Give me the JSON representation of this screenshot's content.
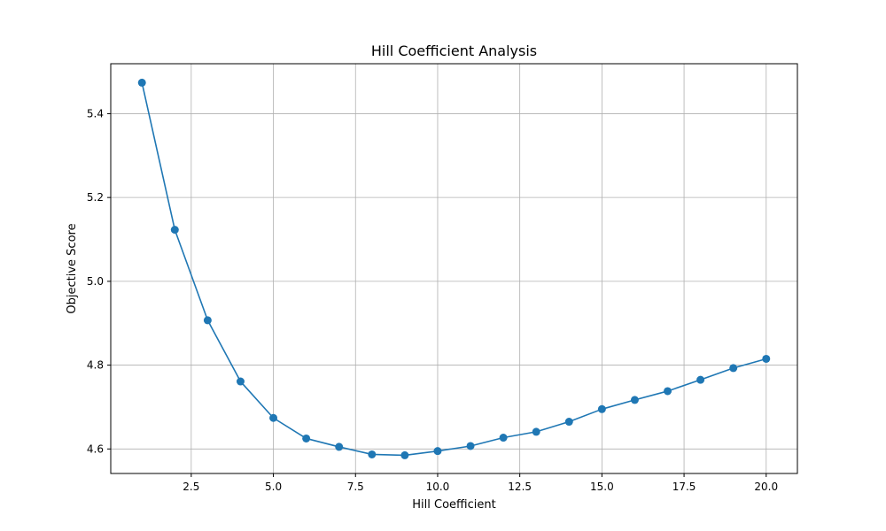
{
  "chart_data": {
    "type": "line",
    "title": "Hill Coefficient Analysis",
    "xlabel": "Hill Coefficient",
    "ylabel": "Objective Score",
    "xlim": [
      0.05,
      20.95
    ],
    "ylim": [
      4.5415,
      5.5192
    ],
    "xticks": [
      2.5,
      5.0,
      7.5,
      10.0,
      12.5,
      15.0,
      17.5,
      20.0
    ],
    "xtick_labels": [
      "2.5",
      "5.0",
      "7.5",
      "10.0",
      "12.5",
      "15.0",
      "17.5",
      "20.0"
    ],
    "yticks": [
      4.6,
      4.8,
      5.0,
      5.2,
      5.4
    ],
    "ytick_labels": [
      "4.6",
      "4.8",
      "5.0",
      "5.2",
      "5.4"
    ],
    "grid": true,
    "markers": "circle",
    "color": "#1f77b4",
    "series": [
      {
        "x": [
          1,
          2,
          3,
          4,
          5,
          6,
          7,
          8,
          9,
          10,
          11,
          12,
          13,
          14,
          15,
          16,
          17,
          18,
          19,
          20
        ],
        "values": [
          5.474,
          5.123,
          4.907,
          4.761,
          4.674,
          4.625,
          4.605,
          4.587,
          4.585,
          4.595,
          4.607,
          4.627,
          4.641,
          4.665,
          4.695,
          4.717,
          4.738,
          4.765,
          4.793,
          4.815
        ]
      }
    ]
  }
}
